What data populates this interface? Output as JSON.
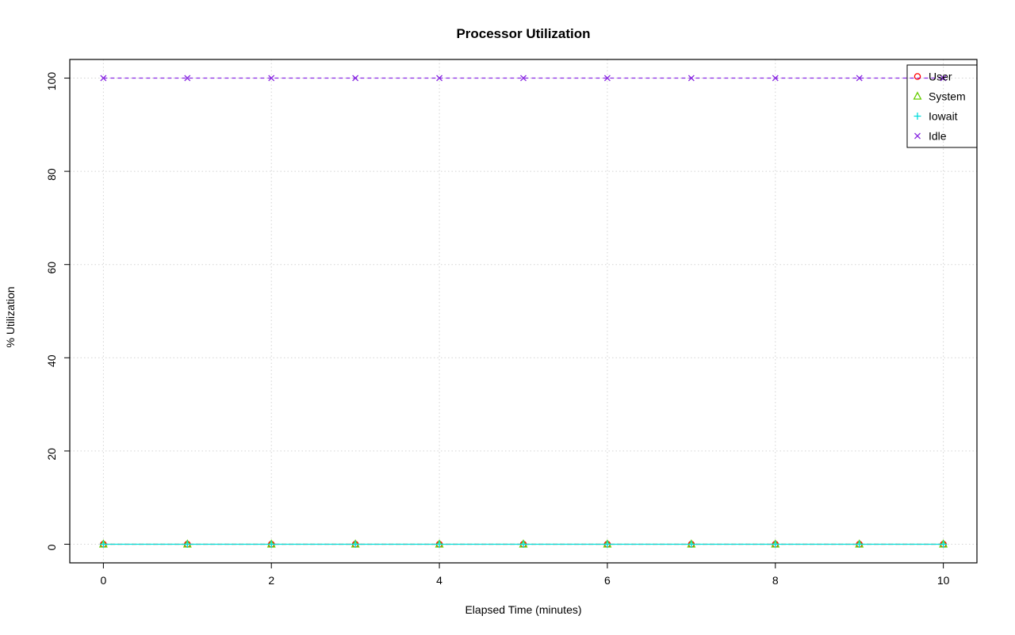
{
  "chart_data": {
    "type": "line",
    "title": "Processor Utilization",
    "xlabel": "Elapsed Time (minutes)",
    "ylabel": "% Utilization",
    "x": [
      0,
      1,
      2,
      3,
      4,
      5,
      6,
      7,
      8,
      9,
      10
    ],
    "xticks": [
      0,
      2,
      4,
      6,
      8,
      10
    ],
    "yticks": [
      0,
      20,
      40,
      60,
      80,
      100
    ],
    "xlim": [
      0,
      10
    ],
    "ylim": [
      0,
      100
    ],
    "grid": true,
    "grid_color": "#d3d3d3",
    "legend_position": "top-right",
    "series": [
      {
        "name": "User",
        "color": "#ff0000",
        "marker": "circle",
        "line": "dashed",
        "values": [
          0,
          0,
          0,
          0,
          0,
          0,
          0,
          0,
          0,
          0,
          0
        ]
      },
      {
        "name": "System",
        "color": "#66cd00",
        "marker": "triangle",
        "line": "dotted",
        "values": [
          0,
          0,
          0,
          0,
          0,
          0,
          0,
          0,
          0,
          0,
          0
        ]
      },
      {
        "name": "Iowait",
        "color": "#00dcdc",
        "marker": "plus",
        "line": "solid",
        "values": [
          0,
          0,
          0,
          0,
          0,
          0,
          0,
          0,
          0,
          0,
          0
        ]
      },
      {
        "name": "Idle",
        "color": "#8a2be2",
        "marker": "x",
        "line": "dashed",
        "values": [
          100,
          100,
          100,
          100,
          100,
          100,
          100,
          100,
          100,
          100,
          100
        ]
      }
    ]
  }
}
